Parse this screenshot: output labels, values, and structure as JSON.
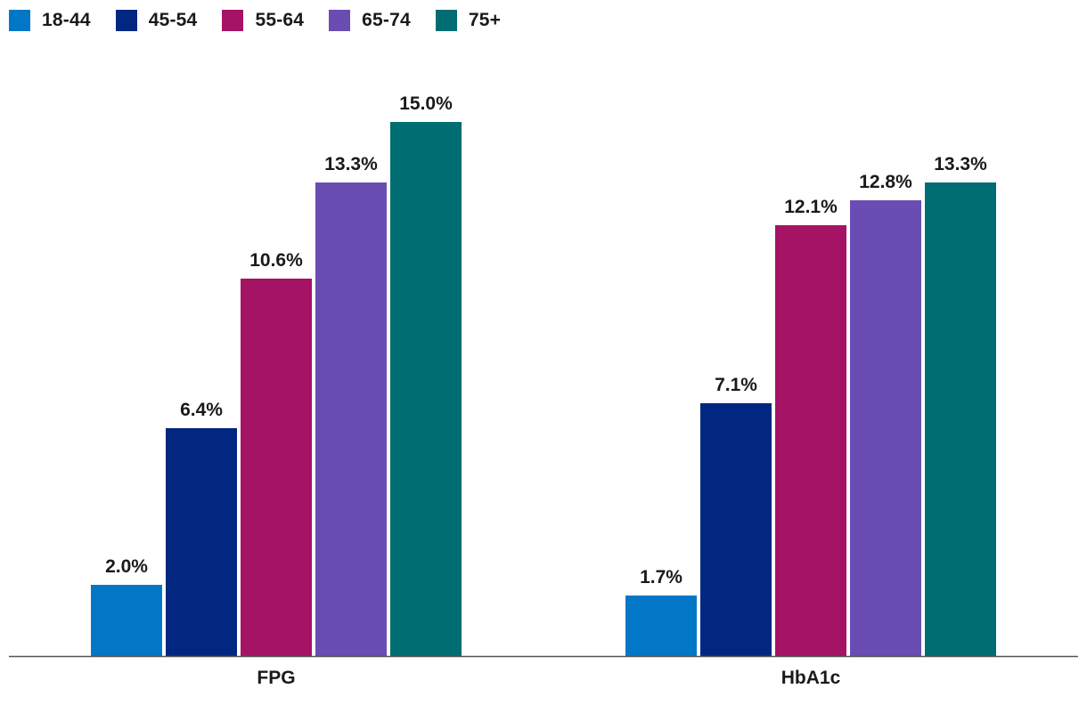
{
  "chart_data": {
    "type": "bar",
    "categories": [
      "FPG",
      "HbA1c"
    ],
    "series": [
      {
        "name": "18-44",
        "color": "#0277C6",
        "values": [
          2.0,
          1.7
        ],
        "labels": [
          "2.0%",
          "1.7%"
        ]
      },
      {
        "name": "45-54",
        "color": "#022780",
        "values": [
          6.4,
          7.1
        ],
        "labels": [
          "6.4%",
          "7.1%"
        ]
      },
      {
        "name": "55-64",
        "color": "#A51365",
        "values": [
          10.6,
          12.1
        ],
        "labels": [
          "10.6%",
          "12.1%"
        ]
      },
      {
        "name": "65-74",
        "color": "#6A4DB2",
        "values": [
          13.3,
          12.8
        ],
        "labels": [
          "13.3%",
          "12.8%"
        ]
      },
      {
        "name": "75+",
        "color": "#006D72",
        "values": [
          15.0,
          13.3
        ],
        "labels": [
          "15.0%",
          "13.3%"
        ]
      }
    ],
    "ylim": [
      0,
      16.5
    ],
    "title": "",
    "xlabel": "",
    "ylabel": "",
    "grid": false,
    "legend_position": "top-left"
  }
}
